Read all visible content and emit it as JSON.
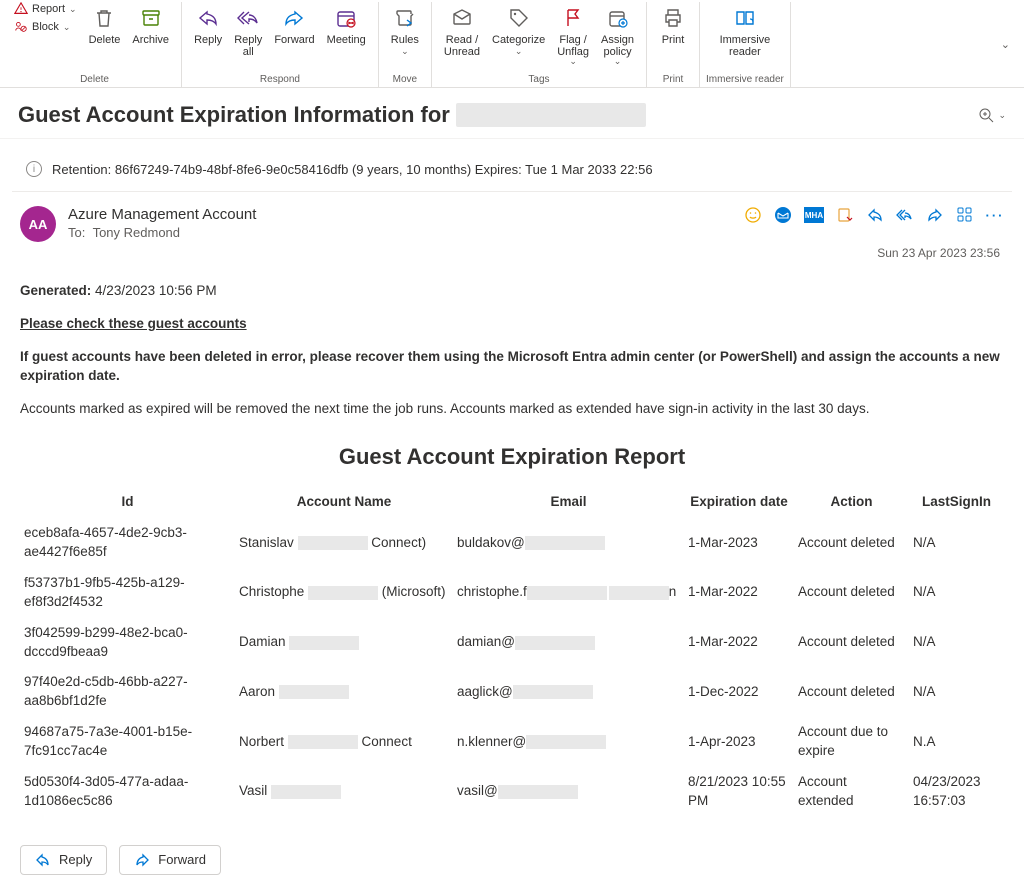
{
  "ribbon": {
    "report_label": "Report",
    "block_label": "Block",
    "delete_label": "Delete",
    "archive_label": "Archive",
    "delete_group": "Delete",
    "reply_label": "Reply",
    "replyall_label": "Reply\nall",
    "forward_label": "Forward",
    "meeting_label": "Meeting",
    "respond_group": "Respond",
    "rules_label": "Rules",
    "move_group": "Move",
    "readunread_label": "Read /\nUnread",
    "categorize_label": "Categorize",
    "flag_label": "Flag /\nUnflag",
    "assignpolicy_label": "Assign\npolicy",
    "tags_group": "Tags",
    "print_label": "Print",
    "print_group": "Print",
    "immersive_label": "Immersive\nreader",
    "immersive_group": "Immersive reader"
  },
  "subject": "Guest Account Expiration Information for",
  "retention_text": "Retention: 86f67249-74b9-48bf-8fe6-9e0c58416dfb (9 years, 10 months) Expires: Tue 1 Mar 2033 22:56",
  "from": {
    "initials": "AA",
    "name": "Azure Management Account",
    "to_label": "To:",
    "to_name": "Tony Redmond"
  },
  "datetime": "Sun 23 Apr 2023 23:56",
  "body": {
    "generated_label": "Generated:",
    "generated_value": "4/23/2023 10:56 PM",
    "check_line": "Please check these guest accounts",
    "recover_line": "If guest accounts have been deleted in error, please recover them using the Microsoft Entra admin center (or PowerShell) and assign the accounts a new expiration date.",
    "marked_line": "Accounts marked as expired will be removed the next time the job runs. Accounts marked as extended have sign-in activity in the last 30 days.",
    "report_title": "Guest Account Expiration Report"
  },
  "table": {
    "headers": {
      "id": "Id",
      "name": "Account Name",
      "email": "Email",
      "exp": "Expiration date",
      "action": "Action",
      "signin": "LastSignIn"
    },
    "rows": [
      {
        "id": "eceb8afa-4657-4de2-9cb3-ae4427f6e85f",
        "name_pre": "Stanislav ",
        "name_post": " Connect)",
        "email_pre": "buldakov@",
        "exp": "1-Mar-2023",
        "action": "Account deleted",
        "signin": "N/A"
      },
      {
        "id": "f53737b1-9fb5-425b-a129-ef8f3d2f4532",
        "name_pre": "Christophe ",
        "name_post": " (Microsoft)",
        "email_pre": "christophe.f",
        "email_post_char": "n",
        "exp": "1-Mar-2022",
        "action": "Account deleted",
        "signin": "N/A"
      },
      {
        "id": "3f042599-b299-48e2-bca0-dcccd9fbeaa9",
        "name_pre": "Damian ",
        "email_pre": "damian@",
        "exp": "1-Mar-2022",
        "action": "Account deleted",
        "signin": "N/A"
      },
      {
        "id": "97f40e2d-c5db-46bb-a227-aa8b6bf1d2fe",
        "name_pre": "Aaron ",
        "email_pre": "aaglick@",
        "exp": "1-Dec-2022",
        "action": "Account deleted",
        "signin": "N/A"
      },
      {
        "id": "94687a75-7a3e-4001-b15e-7fc91cc7ac4e",
        "name_pre": "Norbert ",
        "name_post": " Connect",
        "email_pre": "n.klenner@",
        "exp": "1-Apr-2023",
        "action": "Account due to expire",
        "signin": "N.A"
      },
      {
        "id": "5d0530f4-3d05-477a-adaa-1d1086ec5c86",
        "name_pre": "Vasil ",
        "email_pre": "vasil@",
        "exp": "8/21/2023 10:55 PM",
        "action": "Account extended",
        "signin": "04/23/2023 16:57:03"
      }
    ]
  },
  "footer": {
    "reply": "Reply",
    "forward": "Forward"
  },
  "colors": {
    "purple": "#5b2e91",
    "blue": "#0078d4",
    "green": "#498205",
    "red": "#c50f1f",
    "gray": "#605e5c"
  }
}
